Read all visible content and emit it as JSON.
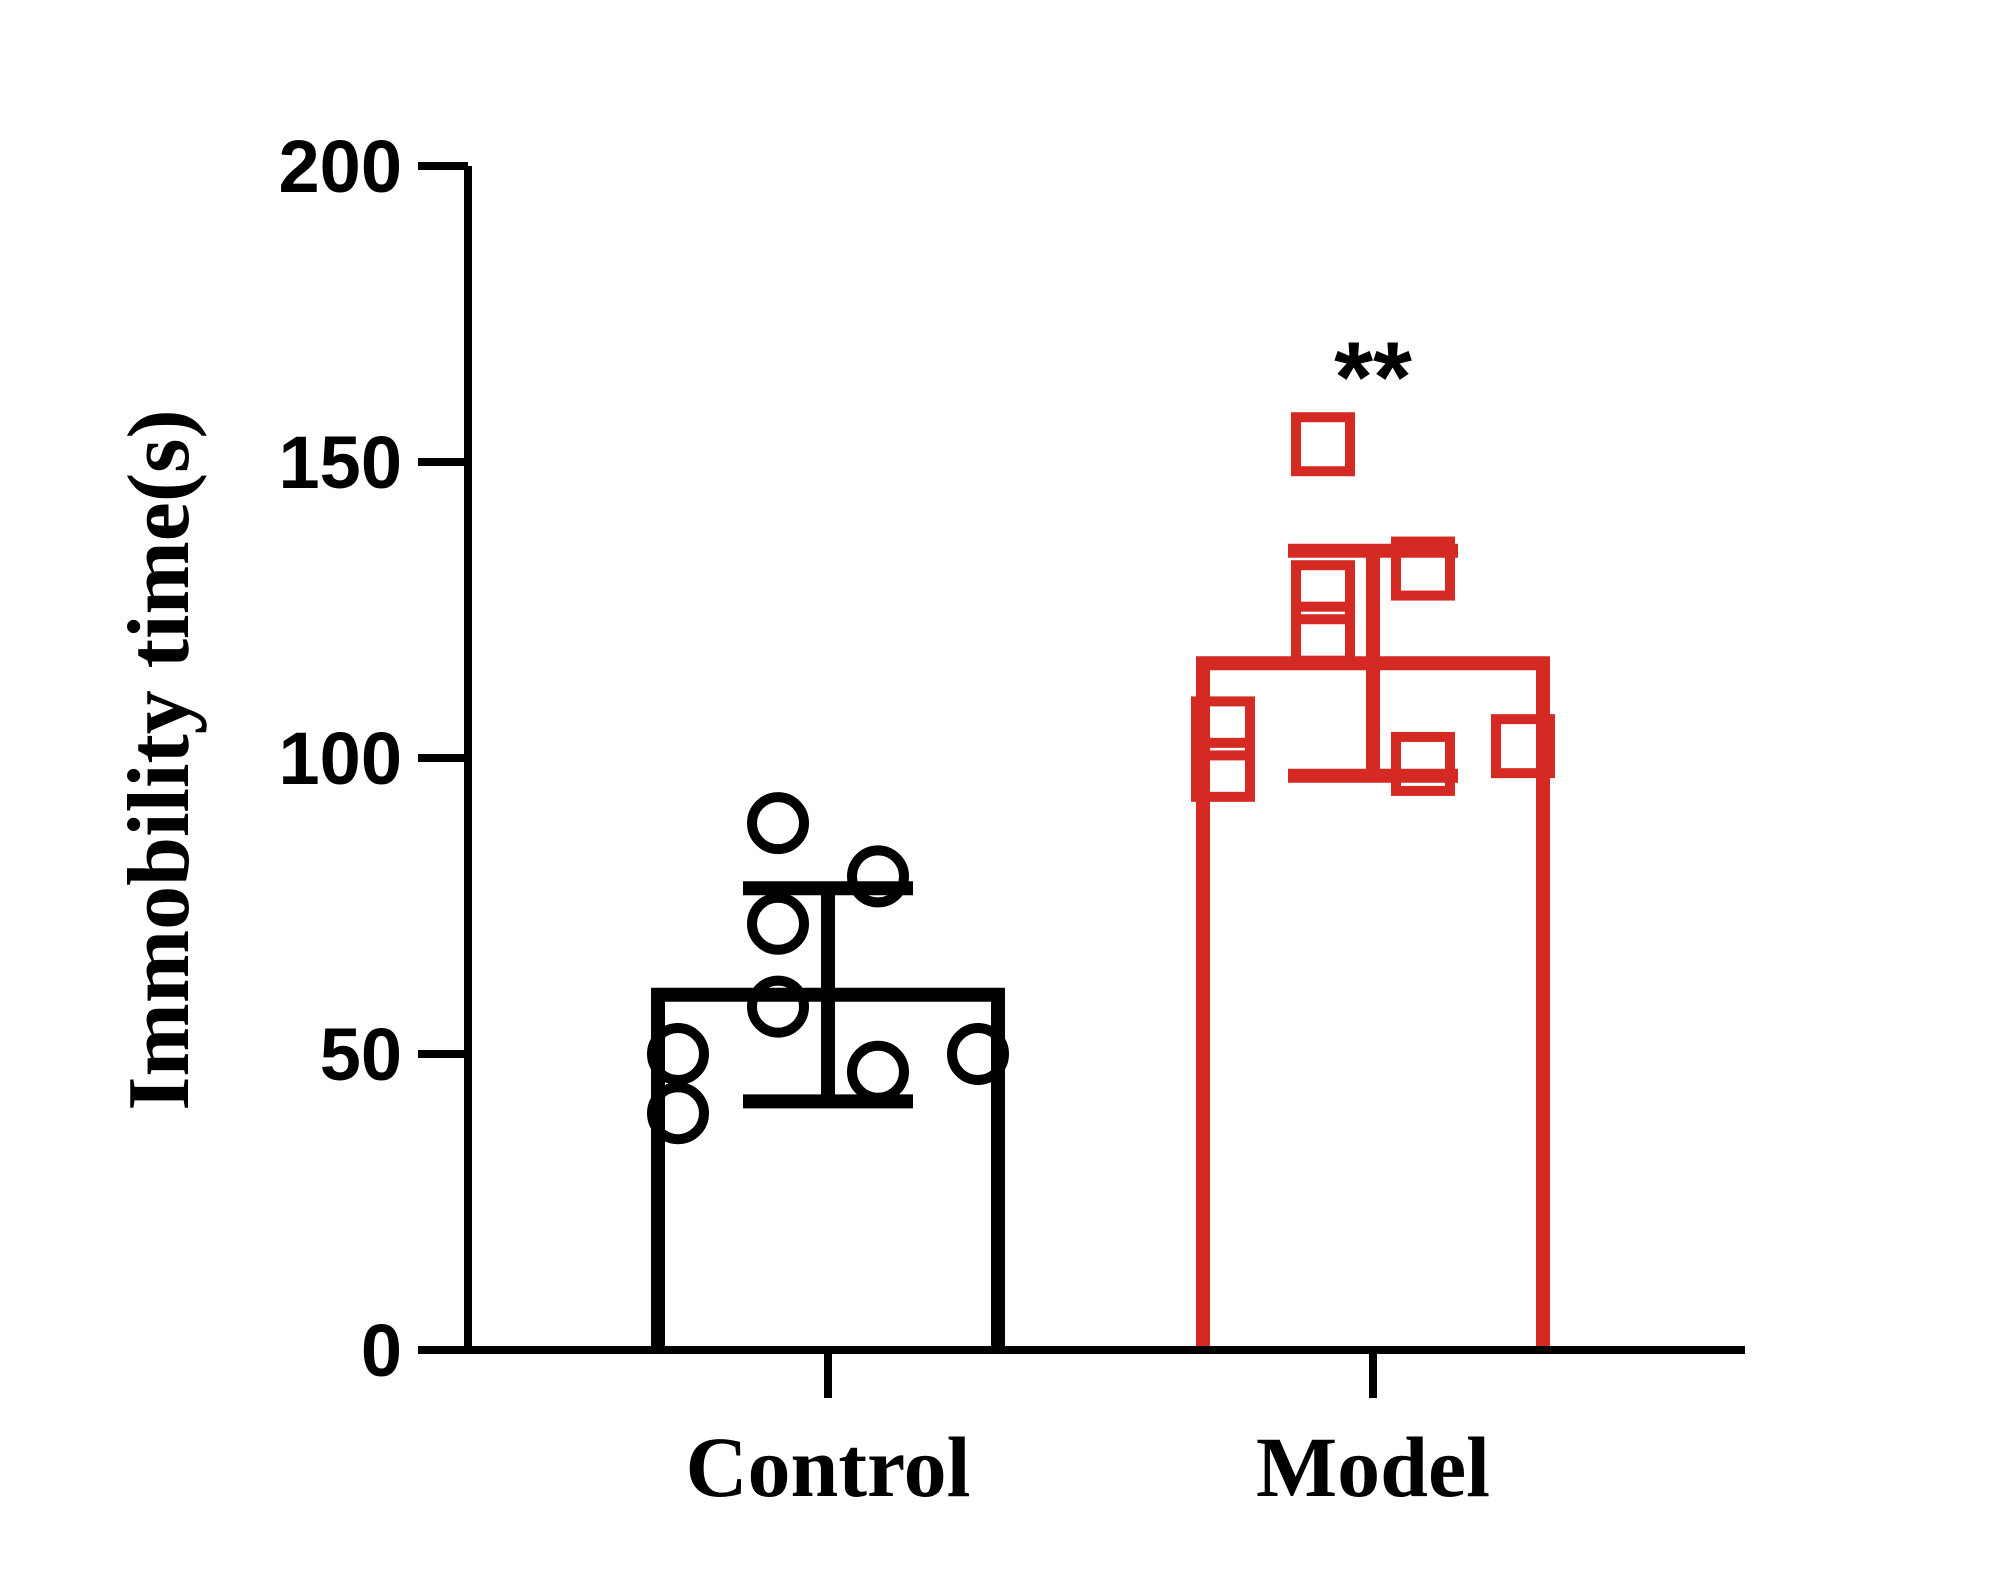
{
  "chart_data": {
    "type": "bar",
    "title": "",
    "xlabel": "",
    "ylabel": "Immobility time(s)",
    "ylim": [
      0,
      200
    ],
    "yticks": [
      0,
      50,
      100,
      150,
      200
    ],
    "yticks_labels": [
      "0",
      "50",
      "100",
      "150",
      "200"
    ],
    "categories": [
      "Control",
      "Model"
    ],
    "values": [
      60,
      116
    ],
    "error_sd": [
      18,
      19
    ],
    "colors": [
      "#000000",
      "#d42a23"
    ],
    "marker_shapes": [
      "circle",
      "square"
    ],
    "points": [
      [
        89,
        80,
        72,
        58,
        50,
        50,
        47,
        40
      ],
      [
        153,
        132,
        128,
        121,
        105,
        102,
        99,
        98
      ]
    ],
    "annotations": [
      {
        "category": "Model",
        "text": "**",
        "y": 168
      }
    ],
    "grid": false,
    "legend": "none"
  }
}
